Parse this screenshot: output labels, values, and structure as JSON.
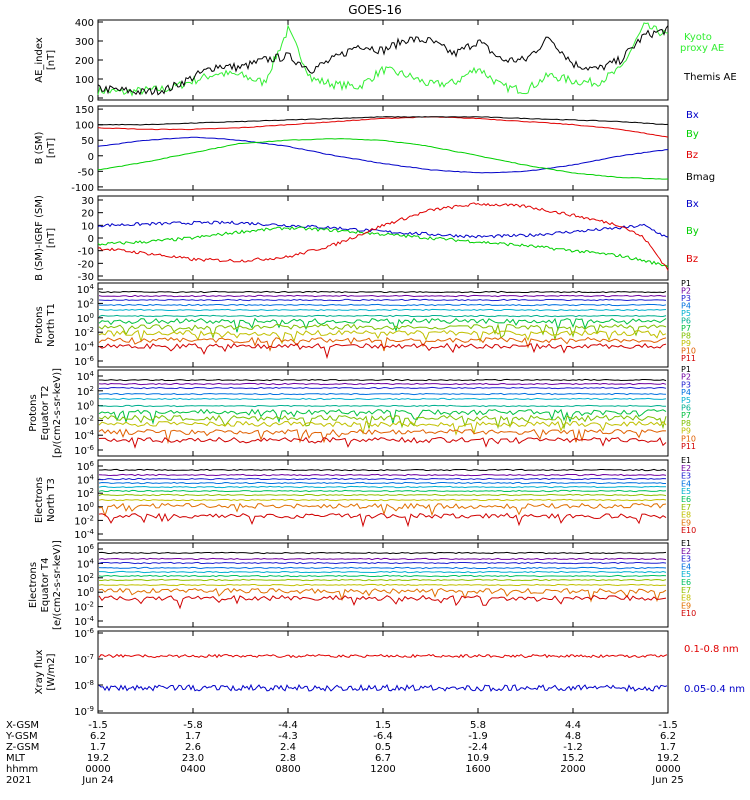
{
  "title": "GOES-16",
  "colors": {
    "black": "#000000",
    "red": "#e00000",
    "green": "#00d000",
    "blue": "#0000c8",
    "bright_green": "#33ee33"
  },
  "chart_data": [
    {
      "type": "line",
      "ylabel": "AE_index\n[nT]",
      "yticks": [
        "400",
        "300",
        "200",
        "100",
        "0"
      ],
      "legend": [
        {
          "name": "Kyoto\nproxy AE",
          "color": "#33ee33"
        },
        {
          "name": "Themis AE",
          "color": "#000000"
        }
      ],
      "series": [
        {
          "name": "Kyoto proxy AE",
          "color": "#33ee33",
          "x": [
            0,
            1,
            2,
            3,
            4,
            5,
            6,
            7,
            8,
            9,
            10,
            11,
            12,
            13,
            14,
            15,
            16,
            17,
            18,
            19,
            20,
            21,
            22,
            23,
            24
          ],
          "values": [
            40,
            30,
            40,
            50,
            90,
            130,
            120,
            80,
            360,
            100,
            70,
            60,
            150,
            120,
            70,
            80,
            160,
            60,
            40,
            120,
            90,
            80,
            150,
            380,
            330
          ]
        },
        {
          "name": "Themis AE",
          "color": "#000000",
          "x": [
            0,
            1,
            2,
            3,
            4,
            5,
            6,
            7,
            8,
            9,
            10,
            11,
            12,
            13,
            14,
            15,
            16,
            17,
            18,
            19,
            20,
            21,
            22,
            23,
            24
          ],
          "values": [
            50,
            40,
            30,
            50,
            110,
            170,
            160,
            200,
            220,
            150,
            210,
            280,
            250,
            310,
            300,
            230,
            300,
            200,
            200,
            320,
            180,
            150,
            200,
            330,
            360
          ]
        }
      ]
    },
    {
      "type": "line",
      "ylabel": "B (SM)\n[nT]",
      "yticks": [
        "150",
        "100",
        "50",
        "0",
        "-50",
        "-100"
      ],
      "legend": [
        {
          "name": "Bx",
          "color": "#0000c8"
        },
        {
          "name": "By",
          "color": "#00d000"
        },
        {
          "name": "Bz",
          "color": "#e00000"
        },
        {
          "name": "Bmag",
          "color": "#000000"
        }
      ],
      "series": [
        {
          "name": "Bx",
          "color": "#0000c8",
          "x": [
            0,
            2,
            4,
            6,
            8,
            10,
            12,
            14,
            16,
            18,
            20,
            22,
            24
          ],
          "values": [
            30,
            50,
            60,
            50,
            30,
            0,
            -25,
            -45,
            -55,
            -50,
            -30,
            0,
            20
          ]
        },
        {
          "name": "By",
          "color": "#00d000",
          "x": [
            0,
            2,
            4,
            6,
            8,
            10,
            12,
            14,
            16,
            18,
            20,
            22,
            24
          ],
          "values": [
            -45,
            -20,
            10,
            40,
            50,
            55,
            50,
            30,
            0,
            -30,
            -55,
            -70,
            -75
          ]
        },
        {
          "name": "Bz",
          "color": "#e00000",
          "x": [
            0,
            2,
            4,
            6,
            8,
            10,
            12,
            14,
            16,
            18,
            20,
            22,
            24
          ],
          "values": [
            90,
            85,
            85,
            90,
            100,
            110,
            120,
            125,
            120,
            110,
            100,
            85,
            60
          ]
        },
        {
          "name": "Bmag",
          "color": "#000000",
          "x": [
            0,
            2,
            4,
            6,
            8,
            10,
            12,
            14,
            16,
            18,
            20,
            22,
            24
          ],
          "values": [
            100,
            100,
            105,
            110,
            115,
            120,
            125,
            125,
            125,
            120,
            115,
            110,
            100
          ]
        }
      ]
    },
    {
      "type": "line",
      "ylabel": "B (SM)-IGRF (SM)\n[nT]",
      "yticks": [
        "30",
        "20",
        "10",
        "0",
        "-10",
        "-20",
        "-30"
      ],
      "legend": [
        {
          "name": "Bx",
          "color": "#0000c8"
        },
        {
          "name": "By",
          "color": "#00d000"
        },
        {
          "name": "Bz",
          "color": "#e00000"
        }
      ],
      "series": [
        {
          "name": "Bx",
          "color": "#0000c8",
          "x": [
            0,
            2,
            4,
            6,
            8,
            10,
            12,
            14,
            16,
            18,
            20,
            22,
            23,
            24
          ],
          "values": [
            10,
            11,
            12,
            12,
            10,
            8,
            5,
            3,
            1,
            2,
            5,
            8,
            10,
            0
          ]
        },
        {
          "name": "By",
          "color": "#00d000",
          "x": [
            0,
            2,
            4,
            6,
            8,
            10,
            12,
            14,
            16,
            18,
            20,
            22,
            23,
            24
          ],
          "values": [
            -5,
            -3,
            0,
            5,
            8,
            6,
            3,
            0,
            -3,
            -6,
            -10,
            -14,
            -18,
            -22
          ]
        },
        {
          "name": "Bz",
          "color": "#e00000",
          "x": [
            0,
            2,
            4,
            6,
            8,
            10,
            12,
            14,
            16,
            18,
            20,
            22,
            23,
            24
          ],
          "values": [
            -8,
            -12,
            -17,
            -18,
            -15,
            -5,
            10,
            22,
            27,
            25,
            18,
            10,
            0,
            -25
          ]
        }
      ]
    },
    {
      "type": "line",
      "ylabel": "Protons\nNorth T1",
      "yticks": [
        "10^4",
        "10^2",
        "10^0",
        "10^-2",
        "10^-4",
        "10^-6"
      ],
      "log_scale": true,
      "legend": [
        "P1",
        "P2",
        "P3",
        "P4",
        "P5",
        "P6",
        "P7",
        "P8",
        "P9",
        "P10",
        "P11"
      ]
    },
    {
      "type": "line",
      "ylabel": "Protons\nEquator T2\n[p/(cm²-s-sr-keV)]",
      "yticks": [
        "10^4",
        "10^2",
        "10^0",
        "10^-2",
        "10^-4",
        "10^-6"
      ],
      "log_scale": true,
      "legend": [
        "P1",
        "P2",
        "P3",
        "P4",
        "P5",
        "P6",
        "P7",
        "P8",
        "P9",
        "P10",
        "P11"
      ]
    },
    {
      "type": "line",
      "ylabel": "Electrons\nNorth T3",
      "yticks": [
        "10^6",
        "10^4",
        "10^2",
        "10^0",
        "10^-2",
        "10^-4"
      ],
      "log_scale": true,
      "legend": [
        "E1",
        "E2",
        "E3",
        "E4",
        "E5",
        "E6",
        "E7",
        "E8",
        "E9",
        "E10"
      ]
    },
    {
      "type": "line",
      "ylabel": "Electrons\nEquator T4\n[e/(cm²-s-sr-keV)]",
      "yticks": [
        "10^6",
        "10^4",
        "10^2",
        "10^0",
        "10^-2",
        "10^-4"
      ],
      "log_scale": true,
      "legend": [
        "E1",
        "E2",
        "E3",
        "E4",
        "E5",
        "E6",
        "E7",
        "E8",
        "E9",
        "E10"
      ]
    },
    {
      "type": "line",
      "ylabel": "Xray flux\n[W/m2]",
      "yticks": [
        "10^-6",
        "10^-7",
        "10^-8",
        "10^-9"
      ],
      "log_scale": true,
      "legend": [
        {
          "name": "0.1-0.8 nm",
          "color": "#e00000"
        },
        {
          "name": "0.05-0.4 nm",
          "color": "#0000c8"
        }
      ]
    }
  ],
  "channel_colors_p": [
    "#000000",
    "#7000a0",
    "#2020d0",
    "#0070e0",
    "#00b0d0",
    "#00b090",
    "#00c040",
    "#80c000",
    "#c0c000",
    "#e06000",
    "#d00000"
  ],
  "channel_colors_e": [
    "#000000",
    "#7000a0",
    "#2020d0",
    "#0070e0",
    "#00b0d0",
    "#00c060",
    "#90c000",
    "#c0c000",
    "#e07000",
    "#d00000"
  ],
  "xaxis": {
    "rows": [
      {
        "label": "X-GSM",
        "vals": [
          "-1.5",
          "-5.8",
          "-4.4",
          "1.5",
          "5.8",
          "4.4",
          "-1.5"
        ]
      },
      {
        "label": "Y-GSM",
        "vals": [
          "6.2",
          "1.7",
          "-4.3",
          "-6.4",
          "-1.9",
          "4.8",
          "6.2"
        ]
      },
      {
        "label": "Z-GSM",
        "vals": [
          "1.7",
          "2.6",
          "2.4",
          "0.5",
          "-2.4",
          "-1.2",
          "1.7"
        ]
      },
      {
        "label": "MLT",
        "vals": [
          "19.2",
          "23.0",
          "2.8",
          "6.7",
          "10.9",
          "15.2",
          "19.2"
        ]
      },
      {
        "label": "hhmm",
        "vals": [
          "0000",
          "0400",
          "0800",
          "1200",
          "1600",
          "2000",
          "0000"
        ]
      },
      {
        "label": "2021",
        "vals": [
          "Jun 24",
          "",
          "",
          "",
          "",
          "",
          "Jun 25"
        ]
      }
    ]
  }
}
